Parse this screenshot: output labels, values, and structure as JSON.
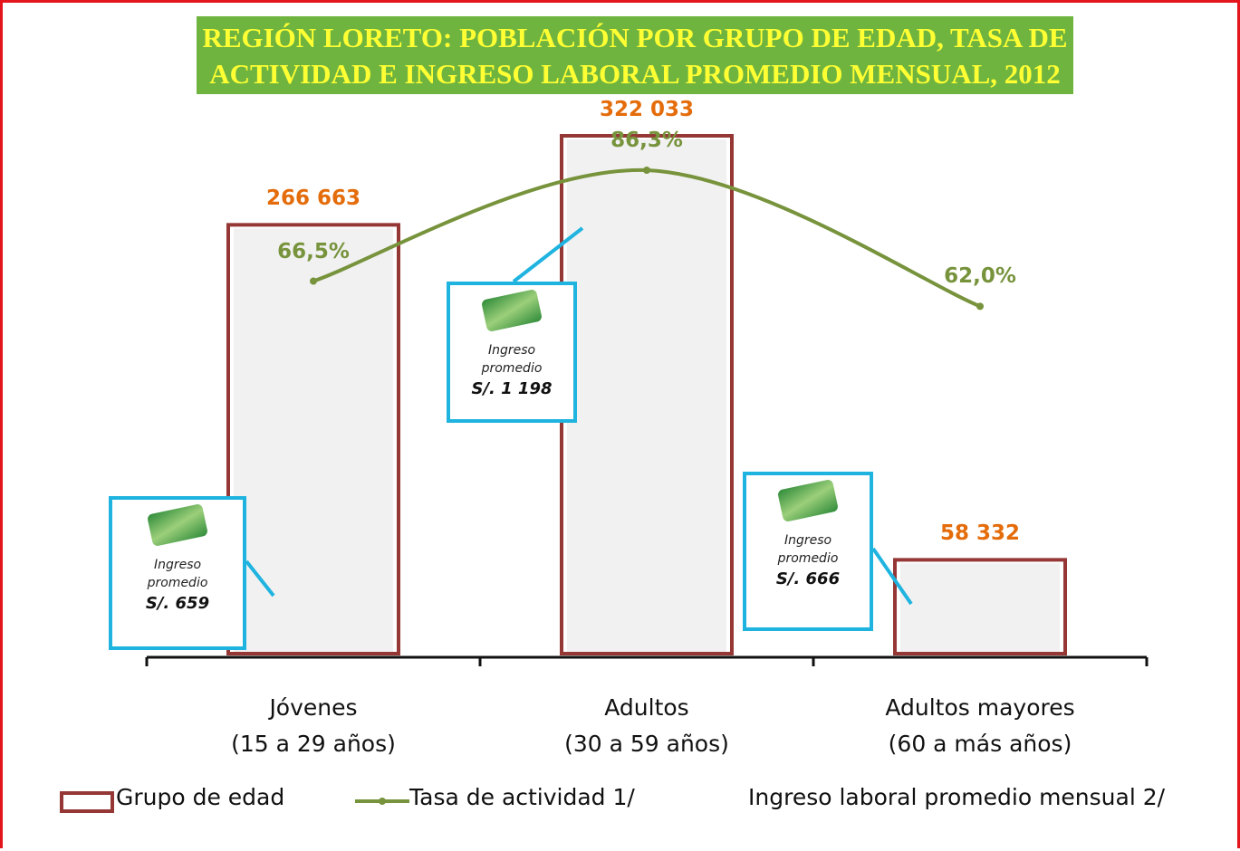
{
  "chart_data": {
    "type": "bar",
    "title": "REGIÓN LORETO: POBLACIÓN POR GRUPO DE EDAD, TASA DE ACTIVIDAD E INGRESO LABORAL PROMEDIO MENSUAL, 2012",
    "categories": [
      "Jóvenes\n(15 a 29 años)",
      "Adultos\n(30 a 59 años)",
      "Adultos mayores\n(60 a más años)"
    ],
    "series": [
      {
        "name": "Grupo de edad",
        "type": "bar",
        "color": "#953735",
        "label_color": "#e46c0a",
        "values": [
          266663,
          322033,
          58332
        ],
        "value_labels": [
          "266 663",
          "322 033",
          "58 332"
        ]
      },
      {
        "name": "Tasa de actividad 1/",
        "type": "line",
        "axis": "y2",
        "color": "#77933c",
        "values": [
          66.5,
          86.3,
          62.0
        ],
        "value_labels": [
          "66,5%",
          "86,3%",
          "62,0%"
        ]
      },
      {
        "name": "Ingreso laboral promedio mensual 2/",
        "type": "callout",
        "color": "#1fb4e0",
        "item_label": "Ingreso promedio",
        "values": [
          659,
          1198,
          666
        ],
        "value_labels": [
          "S/. 659",
          "S/. 1 198",
          "S/. 666"
        ]
      }
    ]
  }
}
